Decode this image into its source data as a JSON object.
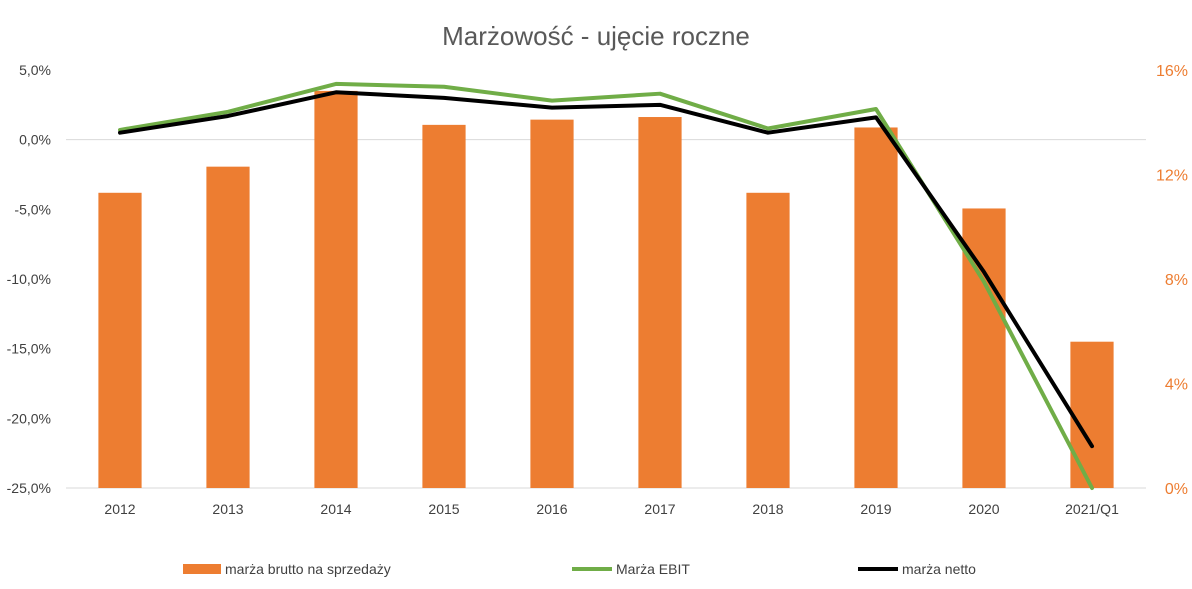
{
  "chart_data": {
    "type": "bar",
    "title": "Marżowość - ujęcie roczne",
    "categories": [
      "2012",
      "2013",
      "2014",
      "2015",
      "2016",
      "2017",
      "2018",
      "2019",
      "2020",
      "2021/Q1"
    ],
    "series": [
      {
        "name": "marża brutto na sprzedaży",
        "type": "bar",
        "axis": "right",
        "color": "#ED7D31",
        "values": [
          11.3,
          12.3,
          15.2,
          13.9,
          14.1,
          14.2,
          11.3,
          13.8,
          10.7,
          5.6
        ]
      },
      {
        "name": "Marża EBIT",
        "type": "line",
        "axis": "left",
        "color": "#70AD47",
        "values": [
          0.7,
          2.0,
          4.0,
          3.8,
          2.8,
          3.3,
          0.8,
          2.2,
          -10.2,
          -25.0
        ]
      },
      {
        "name": "marża netto",
        "type": "line",
        "axis": "left",
        "color": "#000000",
        "values": [
          0.5,
          1.7,
          3.4,
          3.0,
          2.3,
          2.5,
          0.5,
          1.6,
          -9.5,
          -22.0
        ]
      }
    ],
    "y_left": {
      "min": -25,
      "max": 5,
      "ticks": [
        "5,0%",
        "0,0%",
        "-5,0%",
        "-10,0%",
        "-15,0%",
        "-20,0%",
        "-25,0%"
      ],
      "tick_values": [
        5,
        0,
        -5,
        -10,
        -15,
        -20,
        -25
      ]
    },
    "y_right": {
      "min": 0,
      "max": 16,
      "ticks": [
        "16%",
        "12%",
        "8%",
        "4%",
        "0%"
      ],
      "tick_values": [
        16,
        12,
        8,
        4,
        0
      ],
      "color": "#ED7D31"
    },
    "zero_line": true,
    "legend_position": "bottom"
  }
}
